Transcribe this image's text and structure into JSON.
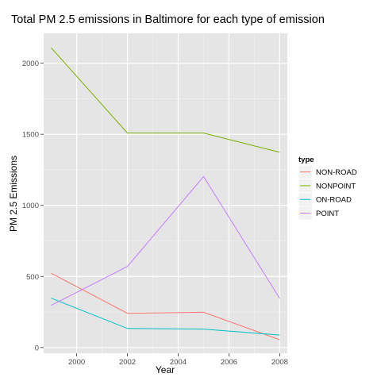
{
  "chart_data": {
    "type": "line",
    "title": "Total PM 2.5 emissions in Baltimore for each type of emission",
    "xlabel": "Year",
    "ylabel": "PM 2.5 Emissions",
    "x": [
      1999,
      2002,
      2005,
      2008
    ],
    "xlim": [
      1998.7,
      2008.3
    ],
    "ylim": [
      -40,
      2210
    ],
    "x_ticks": [
      2000,
      2002,
      2004,
      2006,
      2008
    ],
    "y_ticks": [
      0,
      500,
      1000,
      1500,
      2000
    ],
    "grid": true,
    "legend_title": "type",
    "legend_position": "right",
    "series": [
      {
        "name": "NON-ROAD",
        "color": "#F8766D",
        "values": [
          522,
          241,
          248,
          55
        ]
      },
      {
        "name": "NONPOINT",
        "color": "#7CAE00",
        "values": [
          2108,
          1509,
          1509,
          1373
        ]
      },
      {
        "name": "ON-ROAD",
        "color": "#00BFC4",
        "values": [
          347,
          134,
          130,
          88
        ]
      },
      {
        "name": "POINT",
        "color": "#C77CFF",
        "values": [
          297,
          570,
          1203,
          345
        ]
      }
    ]
  }
}
